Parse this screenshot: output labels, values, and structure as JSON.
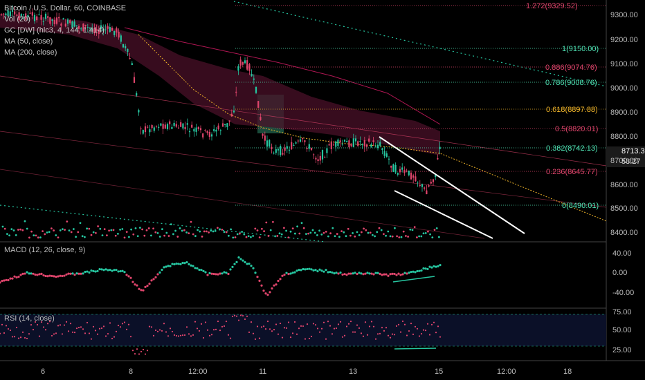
{
  "header": {
    "symbol_title": "Bitcoin / U.S. Dollar, 60, COINBASE",
    "indicators": [
      "Vol (20)",
      "GC [DW] (hlc3, 4, 144, 1.414)",
      "MA (50, close)",
      "MA (200, close)"
    ]
  },
  "price_axis": {
    "ticks": [
      "9300.00",
      "9200.00",
      "9100.00",
      "9000.00",
      "8900.00",
      "8800.00",
      "8700.00",
      "8600.00",
      "8500.00",
      "8400.00"
    ],
    "last_price": "8713.30",
    "countdown": "53:27"
  },
  "fibonacci": [
    {
      "label": "1.272(9329.52)",
      "color": "#e0456c"
    },
    {
      "label": "1(9150.00)",
      "color": "#4fe3b4"
    },
    {
      "label": "0.886(9074.76)",
      "color": "#e0456c"
    },
    {
      "label": "0.786(9008.76)",
      "color": "#4fe3b4"
    },
    {
      "label": "0.618(8897.88)",
      "color": "#f0b429"
    },
    {
      "label": "0.5(8820.01)",
      "color": "#e0456c"
    },
    {
      "label": "0.382(8742.13)",
      "color": "#4fe3b4"
    },
    {
      "label": "0.236(8645.77)",
      "color": "#e0456c"
    },
    {
      "label": "0(8490.01)",
      "color": "#4fe3b4"
    }
  ],
  "macd": {
    "title": "MACD (12, 26, close, 9)",
    "ticks": [
      "40.00",
      "0.00",
      "-40.00"
    ]
  },
  "rsi": {
    "title": "RSI (14, close)",
    "ticks": [
      "75.00",
      "50.00",
      "25.00"
    ]
  },
  "time_axis": [
    "6",
    "8",
    "12:00",
    "11",
    "13",
    "15",
    "12:00",
    "18"
  ],
  "colors": {
    "up": "#26c6a0",
    "down": "#e0456c",
    "band": "#5a1530",
    "ma50": "#f0b429",
    "ma200": "#c2185b"
  }
}
